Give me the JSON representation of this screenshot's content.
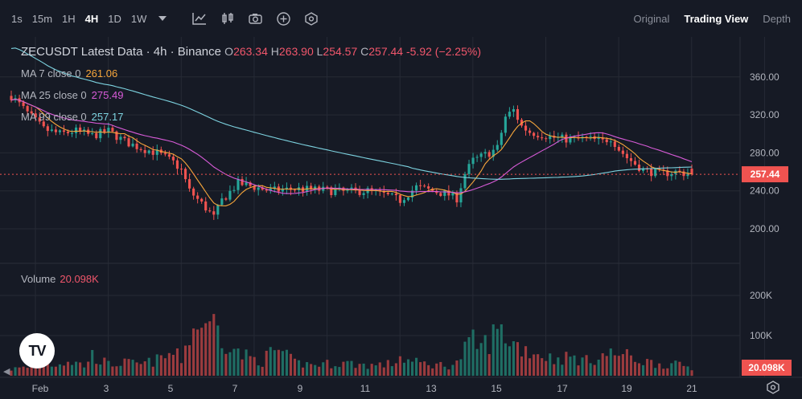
{
  "toolbar": {
    "timeframes": [
      "1s",
      "15m",
      "1H",
      "4H",
      "1D",
      "1W"
    ],
    "active_timeframe": "4H",
    "icons": [
      "chevron-down-icon",
      "indicators-icon",
      "candle-type-icon",
      "camera-icon",
      "plus-circle-icon",
      "settings-hex-icon"
    ],
    "views": [
      "Original",
      "Trading View",
      "Depth"
    ],
    "active_view": "Trading View"
  },
  "legend": {
    "symbol": "ZECUSDT Latest Data · 4h · Binance",
    "o_key": "O",
    "o_val": "263.34",
    "h_key": "H",
    "h_val": "263.90",
    "l_key": "L",
    "l_val": "254.57",
    "c_key": "C",
    "c_val": "257.44",
    "change": "-5.92 (−2.25%)"
  },
  "ma": [
    {
      "label": "MA 7 close 0",
      "value": "261.06",
      "color": "#f7a63b"
    },
    {
      "label": "MA 25 close 0",
      "value": "275.49",
      "color": "#d85bd8"
    },
    {
      "label": "MA 99 close 0",
      "value": "257.17",
      "color": "#7dd3e0"
    }
  ],
  "volume": {
    "label": "Volume",
    "value": "20.098K"
  },
  "colors": {
    "up": "#26a69a",
    "down": "#ef5350",
    "background": "#161a25",
    "grid": "#262a35"
  },
  "chart_data": {
    "type": "candlestick",
    "price_axis": {
      "ticks": [
        200,
        240,
        280,
        320,
        360
      ],
      "tick_labels": [
        "200.00",
        "240.00",
        "280.00",
        "320.00",
        "360.00"
      ]
    },
    "volume_axis": {
      "ticks": [
        100,
        200
      ],
      "tick_labels": [
        "100K",
        "200K"
      ]
    },
    "x_tick_labels": [
      "Feb",
      "3",
      "5",
      "7",
      "9",
      "11",
      "13",
      "15",
      "17",
      "19",
      "21"
    ],
    "last_price": 257.44,
    "last_price_label": "257.44",
    "last_volume_label": "20.098K",
    "close_path": [
      [
        0,
        340
      ],
      [
        4,
        322
      ],
      [
        8,
        305
      ],
      [
        12,
        300
      ],
      [
        16,
        303
      ],
      [
        20,
        298
      ],
      [
        24,
        303
      ],
      [
        28,
        292
      ],
      [
        32,
        285
      ],
      [
        36,
        280
      ],
      [
        40,
        270
      ],
      [
        42,
        262
      ],
      [
        44,
        240
      ],
      [
        48,
        222
      ],
      [
        50,
        212
      ],
      [
        52,
        230
      ],
      [
        56,
        248
      ],
      [
        60,
        244
      ],
      [
        64,
        240
      ],
      [
        70,
        242
      ],
      [
        76,
        241
      ],
      [
        82,
        239
      ],
      [
        88,
        240
      ],
      [
        92,
        236
      ],
      [
        96,
        230
      ],
      [
        100,
        244
      ],
      [
        104,
        240
      ],
      [
        108,
        236
      ],
      [
        110,
        232
      ],
      [
        112,
        258
      ],
      [
        114,
        272
      ],
      [
        116,
        276
      ],
      [
        118,
        280
      ],
      [
        120,
        285
      ],
      [
        122,
        318
      ],
      [
        124,
        325
      ],
      [
        126,
        308
      ],
      [
        128,
        302
      ],
      [
        130,
        300
      ],
      [
        134,
        296
      ],
      [
        138,
        294
      ],
      [
        142,
        295
      ],
      [
        146,
        292
      ],
      [
        148,
        296
      ],
      [
        150,
        284
      ],
      [
        152,
        275
      ],
      [
        156,
        262
      ],
      [
        160,
        258
      ],
      [
        164,
        260
      ],
      [
        168,
        257.44
      ]
    ],
    "volume_path": [
      [
        0,
        18
      ],
      [
        4,
        22
      ],
      [
        6,
        48
      ],
      [
        8,
        50
      ],
      [
        10,
        30
      ],
      [
        14,
        40
      ],
      [
        18,
        28
      ],
      [
        20,
        55
      ],
      [
        24,
        30
      ],
      [
        28,
        35
      ],
      [
        32,
        30
      ],
      [
        36,
        42
      ],
      [
        40,
        60
      ],
      [
        42,
        45
      ],
      [
        44,
        110
      ],
      [
        46,
        140
      ],
      [
        47,
        125
      ],
      [
        48,
        180
      ],
      [
        49,
        120
      ],
      [
        50,
        145
      ],
      [
        52,
        105
      ],
      [
        54,
        90
      ],
      [
        56,
        60
      ],
      [
        60,
        45
      ],
      [
        62,
        40
      ],
      [
        64,
        60
      ],
      [
        66,
        70
      ],
      [
        68,
        50
      ],
      [
        70,
        35
      ],
      [
        74,
        30
      ],
      [
        78,
        32
      ],
      [
        82,
        35
      ],
      [
        86,
        30
      ],
      [
        90,
        28
      ],
      [
        94,
        32
      ],
      [
        96,
        50
      ],
      [
        98,
        40
      ],
      [
        100,
        35
      ],
      [
        104,
        30
      ],
      [
        108,
        28
      ],
      [
        110,
        34
      ],
      [
        112,
        70
      ],
      [
        114,
        90
      ],
      [
        116,
        78
      ],
      [
        118,
        95
      ],
      [
        120,
        120
      ],
      [
        122,
        110
      ],
      [
        124,
        88
      ],
      [
        126,
        75
      ],
      [
        130,
        60
      ],
      [
        134,
        45
      ],
      [
        138,
        50
      ],
      [
        142,
        40
      ],
      [
        146,
        55
      ],
      [
        150,
        60
      ],
      [
        154,
        45
      ],
      [
        158,
        35
      ],
      [
        162,
        30
      ],
      [
        166,
        28
      ],
      [
        168,
        20
      ]
    ]
  }
}
